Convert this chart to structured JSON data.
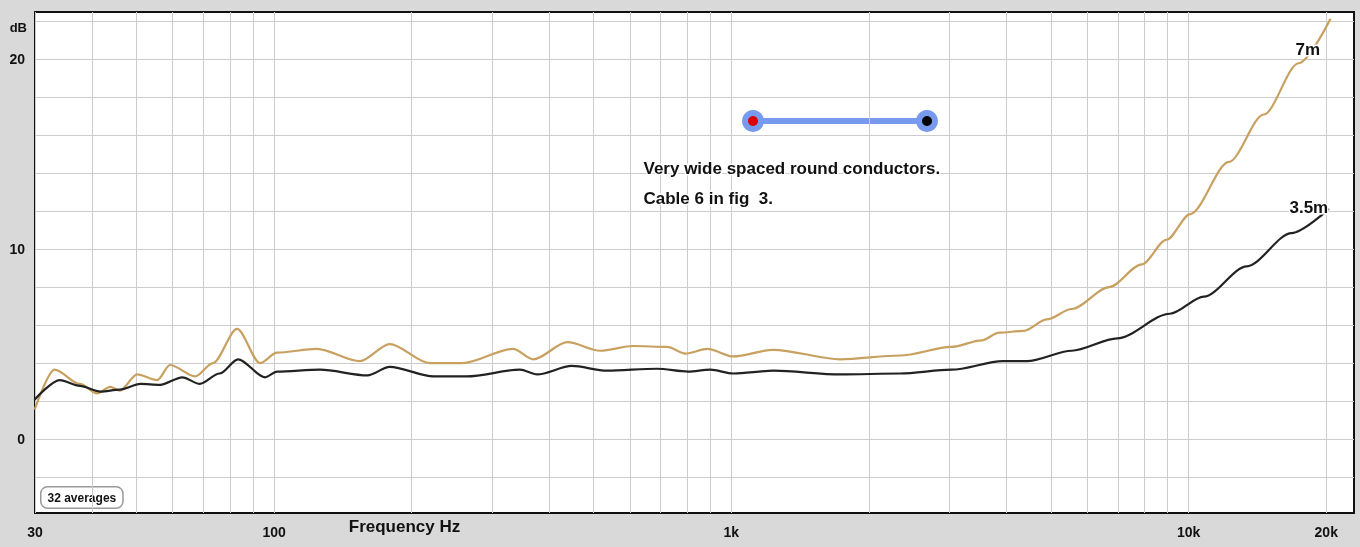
{
  "chart_data": {
    "type": "line",
    "xlabel": "Frequency Hz",
    "ylabel": "dB",
    "log": "x",
    "grid": true,
    "legend": false,
    "marker": "none",
    "line_style": "solid",
    "xlim": [
      30,
      23000
    ],
    "ylim": [
      -3.9,
      22.5
    ],
    "xticks": [
      30,
      {
        "value": 40,
        "label": null
      },
      {
        "value": 50,
        "label": null
      },
      {
        "value": 60,
        "label": null
      },
      {
        "value": 70,
        "label": null
      },
      {
        "value": 80,
        "label": null
      },
      {
        "value": 90,
        "label": null
      },
      100,
      {
        "value": 200,
        "label": null
      },
      {
        "value": 300,
        "label": null
      },
      {
        "value": 400,
        "label": null
      },
      {
        "value": 500,
        "label": null
      },
      {
        "value": 600,
        "label": null
      },
      {
        "value": 700,
        "label": null
      },
      {
        "value": 800,
        "label": null
      },
      {
        "value": 900,
        "label": null
      },
      {
        "value": 1000,
        "label": "1k"
      },
      {
        "value": 2000,
        "label": null
      },
      {
        "value": 3000,
        "label": null
      },
      {
        "value": 4000,
        "label": null
      },
      {
        "value": 5000,
        "label": null
      },
      {
        "value": 6000,
        "label": null
      },
      {
        "value": 7000,
        "label": null
      },
      {
        "value": 8000,
        "label": null
      },
      {
        "value": 9000,
        "label": null
      },
      {
        "value": 10000,
        "label": "10k"
      },
      {
        "value": 20000,
        "label": "20k"
      }
    ],
    "yticks": [
      {
        "value": -2,
        "label": null
      },
      0,
      {
        "value": 2,
        "label": null
      },
      {
        "value": 4,
        "label": null
      },
      {
        "value": 6,
        "label": null
      },
      {
        "value": 8,
        "label": null
      },
      10,
      {
        "value": 12,
        "label": null
      },
      {
        "value": 14,
        "label": null
      },
      {
        "value": 16,
        "label": null
      },
      {
        "value": 18,
        "label": null
      },
      20,
      {
        "value": 22,
        "label": null
      }
    ],
    "series": [
      {
        "name": "7m",
        "color": "#c8a060",
        "x": [
          30,
          33.1,
          37.6,
          41,
          43.8,
          46,
          50.2,
          55.5,
          59.2,
          67.2,
          73.5,
          83,
          93.2,
          101.5,
          124,
          154,
          179,
          219,
          258,
          333,
          369,
          438,
          517,
          610,
          724,
          794,
          887,
          1010,
          1236,
          1730,
          2340,
          3030,
          3530,
          3850,
          4360,
          4900,
          5550,
          6700,
          7900,
          8950,
          10080,
          12250,
          14600,
          17400,
          20400
        ],
        "values": [
          1.6,
          3.65,
          2.9,
          2.4,
          2.75,
          2.55,
          3.4,
          3.1,
          3.9,
          3.3,
          4.0,
          5.8,
          4.0,
          4.55,
          4.75,
          4.1,
          5.0,
          4.0,
          4.0,
          4.75,
          4.2,
          5.1,
          4.65,
          4.9,
          4.85,
          4.5,
          4.75,
          4.35,
          4.7,
          4.2,
          4.4,
          4.85,
          5.2,
          5.6,
          5.7,
          6.3,
          6.85,
          8.0,
          9.2,
          10.5,
          11.85,
          14.6,
          17.1,
          19.8,
          22.1
        ]
      },
      {
        "name": "3.5m",
        "color": "#222222",
        "x": [
          30,
          34,
          37.6,
          41.7,
          46,
          51,
          56.3,
          63,
          68.8,
          76,
          83.4,
          95.6,
          101.5,
          126,
          160,
          179,
          223,
          264,
          345,
          376,
          448,
          534,
          688,
          805,
          899,
          1010,
          1236,
          1730,
          2340,
          3030,
          3920,
          4430,
          5550,
          6980,
          9100,
          10800,
          13400,
          16800,
          20200
        ],
        "values": [
          2.1,
          3.1,
          2.8,
          2.5,
          2.6,
          2.9,
          2.85,
          3.25,
          2.9,
          3.45,
          4.2,
          3.25,
          3.55,
          3.65,
          3.35,
          3.8,
          3.3,
          3.3,
          3.65,
          3.4,
          3.85,
          3.6,
          3.7,
          3.55,
          3.65,
          3.45,
          3.6,
          3.4,
          3.45,
          3.65,
          4.1,
          4.1,
          4.65,
          5.3,
          6.6,
          7.5,
          9.1,
          10.85,
          12.1
        ]
      }
    ],
    "annotations": [
      "Very wide spaced round conductors.",
      "Cable 6 in fig  3.",
      "32 averages"
    ]
  }
}
